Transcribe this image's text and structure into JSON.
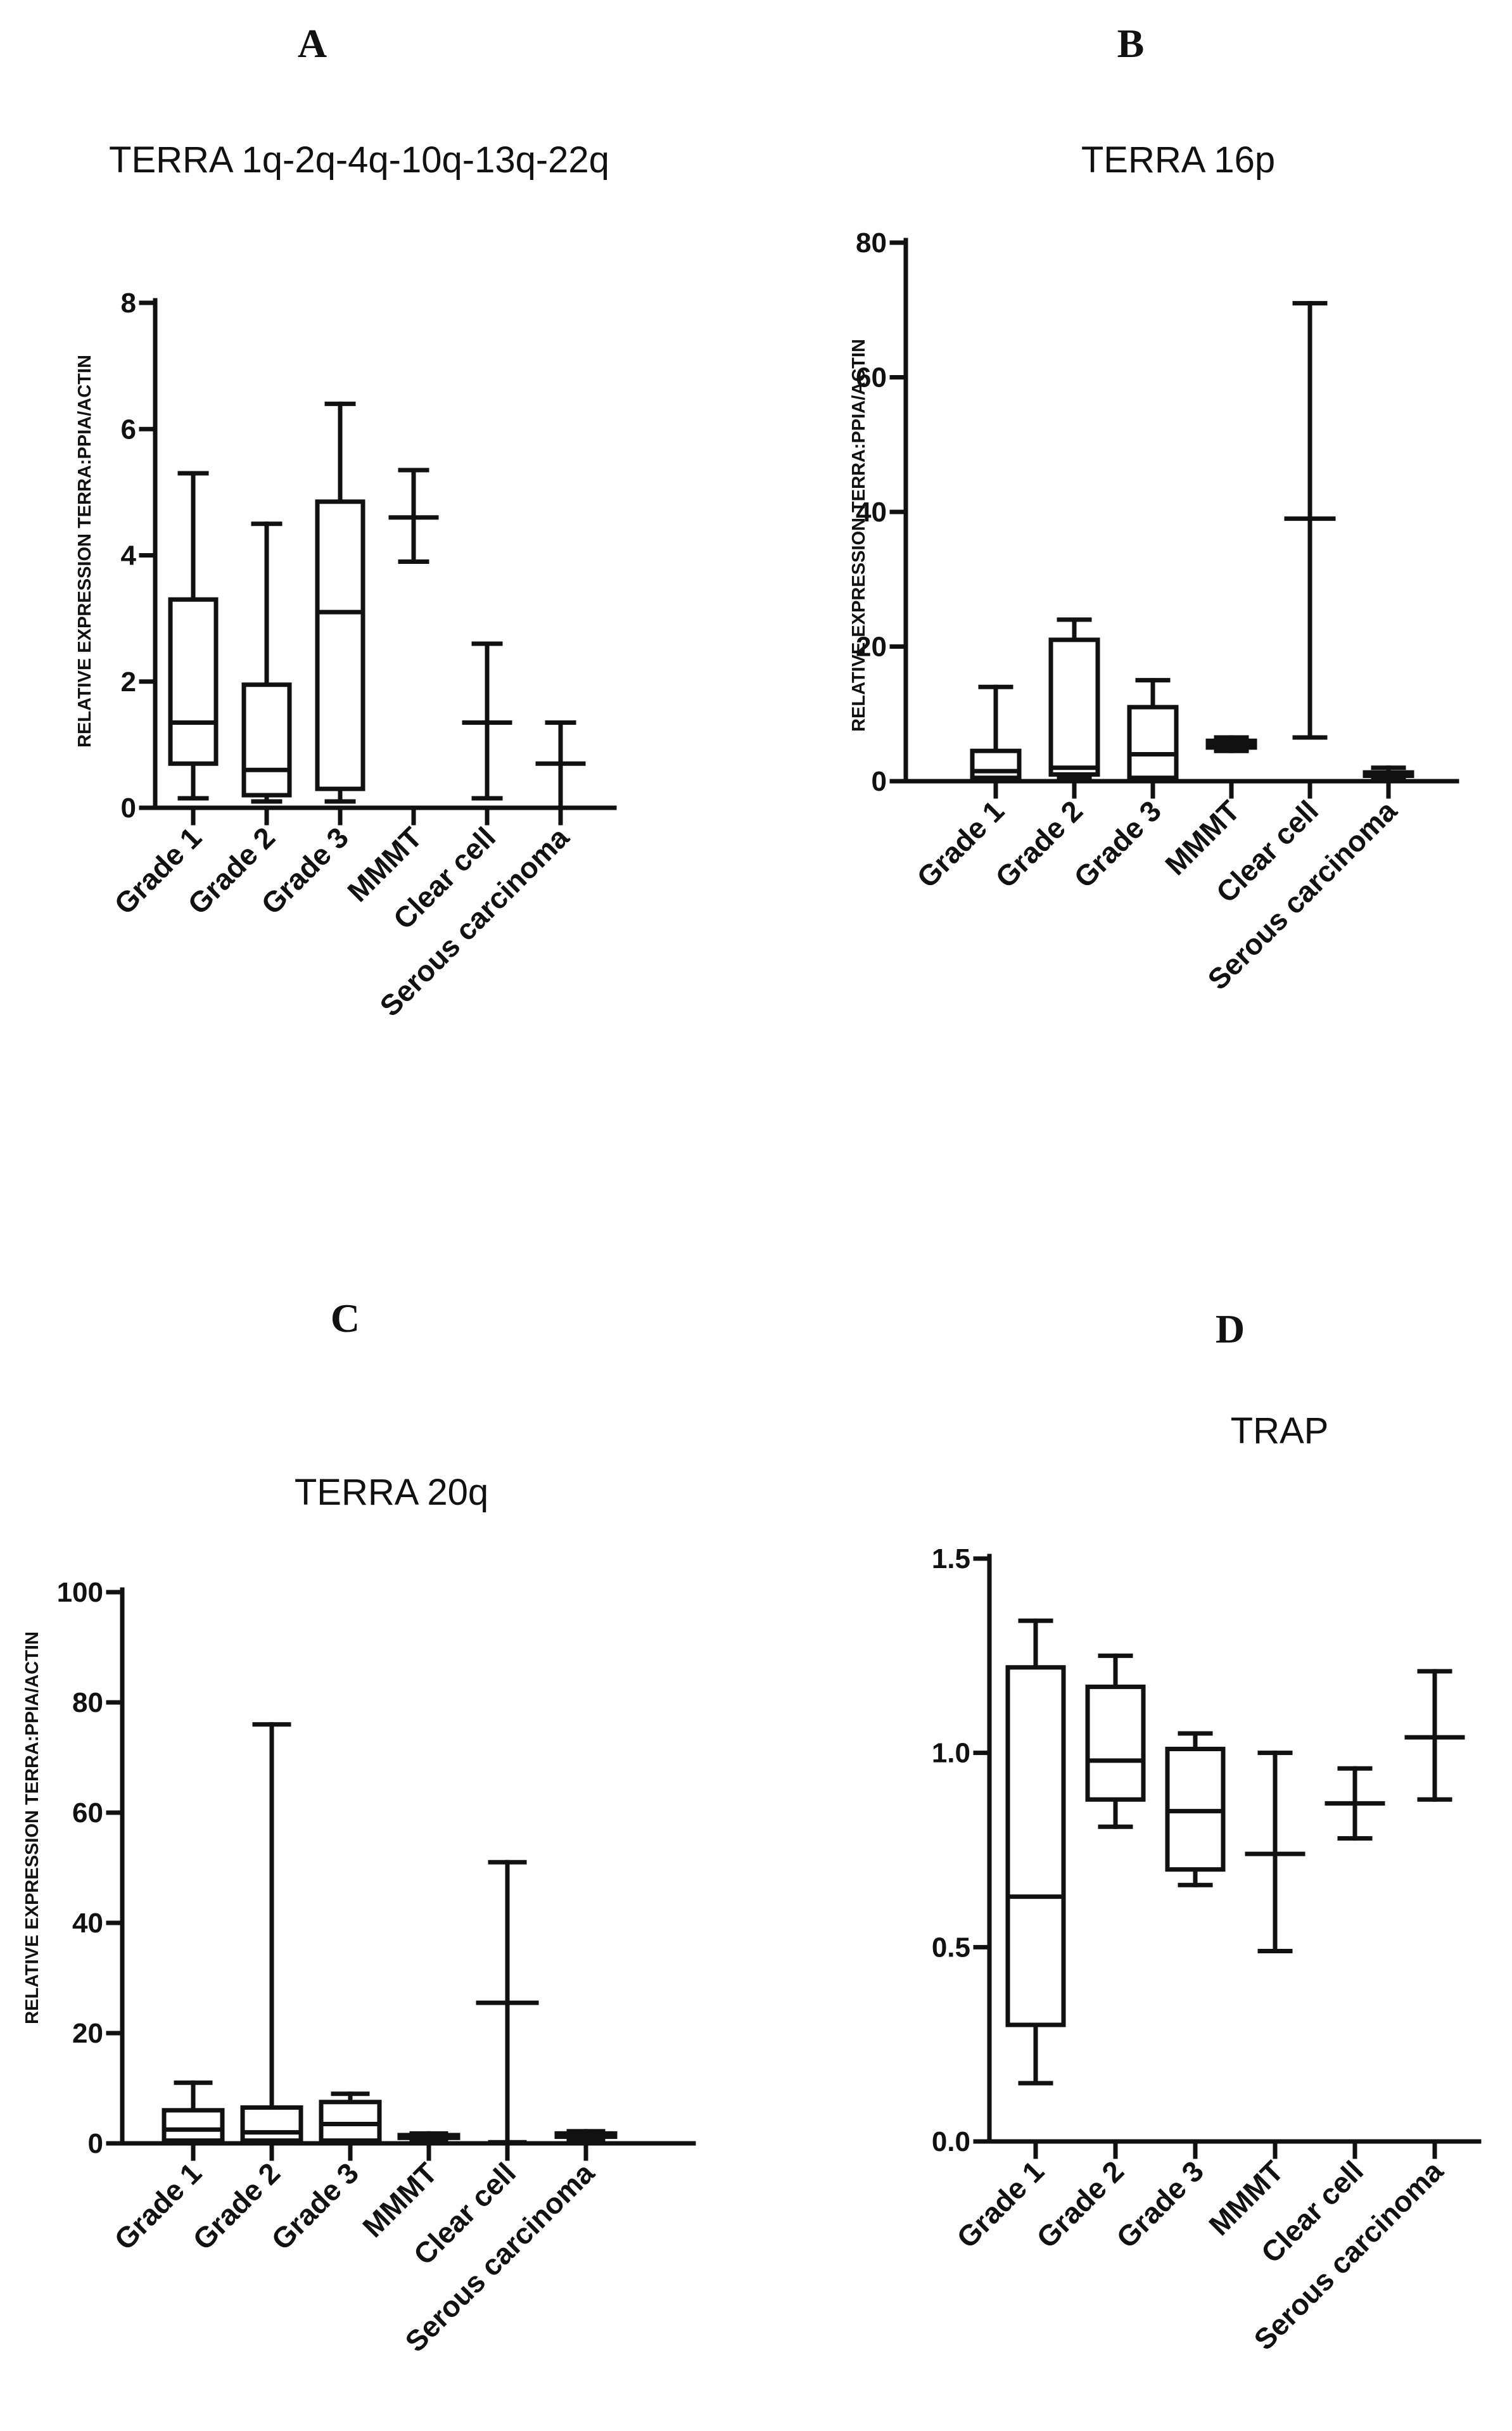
{
  "chart_data": [
    {
      "panel": "A",
      "type": "box",
      "title": "TERRA 1q-2q-4q-10q-13q-22q",
      "xlabel": "",
      "ylabel": "RELATIVE EXPRESSION TERRA:PPIA/ACTIN",
      "ylim": [
        0,
        8
      ],
      "yticks": [
        0,
        2,
        4,
        6,
        8
      ],
      "ytick_labels": [
        "0",
        "2",
        "4",
        "6",
        "8"
      ],
      "categories": [
        "Grade 1",
        "Grade 2",
        "Grade 3",
        "MMMT",
        "Clear cell",
        "Serous carcinoma"
      ],
      "boxes": [
        {
          "min": 0.15,
          "q1": 0.7,
          "median": 1.35,
          "q3": 3.3,
          "max": 5.3
        },
        {
          "min": 0.1,
          "q1": 0.2,
          "median": 0.6,
          "q3": 1.95,
          "max": 4.5
        },
        {
          "min": 0.1,
          "q1": 0.3,
          "median": 3.1,
          "q3": 4.85,
          "max": 6.4
        },
        {
          "min": 3.9,
          "q1": 4.6,
          "median": 4.6,
          "q3": 4.6,
          "max": 5.35
        },
        {
          "min": 0.15,
          "q1": 1.35,
          "median": 1.35,
          "q3": 1.35,
          "max": 2.6
        },
        {
          "min": 0.0,
          "q1": 0.7,
          "median": 0.7,
          "q3": 0.7,
          "max": 1.35
        }
      ]
    },
    {
      "panel": "B",
      "type": "box",
      "title": "TERRA 16p",
      "xlabel": "",
      "ylabel": "RELATIVE EXPRESSION TERRA:PPIA/ACTIN",
      "ylim": [
        0,
        80
      ],
      "yticks": [
        0,
        20,
        40,
        60,
        80
      ],
      "ytick_labels": [
        "0",
        "20",
        "40",
        "60",
        "80"
      ],
      "categories": [
        "Grade 1",
        "Grade 2",
        "Grade 3",
        "MMMT",
        "Clear cell",
        "Serous carcinoma"
      ],
      "boxes": [
        {
          "min": 0.2,
          "q1": 0.5,
          "median": 1.5,
          "q3": 4.5,
          "max": 14
        },
        {
          "min": 0.5,
          "q1": 1.0,
          "median": 2.0,
          "q3": 21,
          "max": 24
        },
        {
          "min": 0.2,
          "q1": 0.5,
          "median": 4.0,
          "q3": 11,
          "max": 15
        },
        {
          "min": 4.5,
          "q1": 5.0,
          "median": 5.5,
          "q3": 6.0,
          "max": 6.5
        },
        {
          "min": 6.5,
          "q1": 39,
          "median": 39,
          "q3": 39,
          "max": 71
        },
        {
          "min": 0.3,
          "q1": 0.8,
          "median": 1.0,
          "q3": 1.3,
          "max": 2.0
        }
      ]
    },
    {
      "panel": "C",
      "type": "box",
      "title": "TERRA 20q",
      "xlabel": "",
      "ylabel": "RELATIVE EXPRESSION TERRA:PPIA/ACTIN",
      "ylim": [
        0,
        100
      ],
      "yticks": [
        0,
        20,
        40,
        60,
        80,
        100
      ],
      "ytick_labels": [
        "0",
        "20",
        "40",
        "60",
        "80",
        "100"
      ],
      "categories": [
        "Grade 1",
        "Grade 2",
        "Grade 3",
        "MMMT",
        "Clear cell",
        "Serous carcinoma"
      ],
      "boxes": [
        {
          "min": 0.2,
          "q1": 0.5,
          "median": 2.5,
          "q3": 6.0,
          "max": 11
        },
        {
          "min": 0.2,
          "q1": 0.5,
          "median": 2.0,
          "q3": 6.5,
          "max": 76
        },
        {
          "min": 0.2,
          "q1": 0.5,
          "median": 3.5,
          "q3": 7.5,
          "max": 9.0
        },
        {
          "min": 0.5,
          "q1": 1.0,
          "median": 1.2,
          "q3": 1.5,
          "max": 1.8
        },
        {
          "min": 0.2,
          "q1": 25.5,
          "median": 25.5,
          "q3": 25.5,
          "max": 51
        },
        {
          "min": 0.5,
          "q1": 1.2,
          "median": 1.5,
          "q3": 1.8,
          "max": 2.2
        }
      ]
    },
    {
      "panel": "D",
      "type": "box",
      "title": "TRAP",
      "xlabel": "",
      "ylabel": "",
      "ylim": [
        0,
        1.5
      ],
      "yticks": [
        0,
        0.5,
        1.0,
        1.5
      ],
      "ytick_labels": [
        "0.0",
        "0.5",
        "1.0",
        "1.5"
      ],
      "categories": [
        "Grade 1",
        "Grade 2",
        "Grade 3",
        "MMMT",
        "Clear cell",
        "Serous carcinoma"
      ],
      "boxes": [
        {
          "min": 0.15,
          "q1": 0.3,
          "median": 0.63,
          "q3": 1.22,
          "max": 1.34
        },
        {
          "min": 0.81,
          "q1": 0.88,
          "median": 0.98,
          "q3": 1.17,
          "max": 1.25
        },
        {
          "min": 0.66,
          "q1": 0.7,
          "median": 0.85,
          "q3": 1.01,
          "max": 1.05
        },
        {
          "min": 0.49,
          "q1": 0.74,
          "median": 0.74,
          "q3": 0.74,
          "max": 1.0
        },
        {
          "min": 0.78,
          "q1": 0.87,
          "median": 0.87,
          "q3": 0.87,
          "max": 0.96
        },
        {
          "min": 0.88,
          "q1": 1.04,
          "median": 1.04,
          "q3": 1.04,
          "max": 1.21
        }
      ]
    }
  ]
}
